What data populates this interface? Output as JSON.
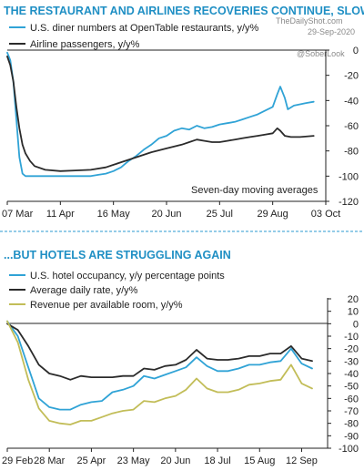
{
  "colors": {
    "title": "#1f8fc4",
    "blue": "#30a3d6",
    "dark": "#2b2b2b",
    "olive": "#c2bd58",
    "divider": "#2b9ad0",
    "axis": "#222222"
  },
  "watermark": {
    "site": "TheDailyShot.com",
    "date": "29-Sep-2020",
    "handle": "@SoberLook"
  },
  "chart_data": [
    {
      "type": "line",
      "title": "THE RESTAURANT AND AIRLINES RECOVERIES CONTINUE, SLOWLY",
      "note": "Seven-day moving averages",
      "y_axis_position": "right",
      "ylim": [
        -120,
        0
      ],
      "yticks": [
        0,
        -20,
        -40,
        -60,
        -80,
        -100,
        -120
      ],
      "ytick_labels": [
        "0",
        "-20",
        "-40",
        "-60",
        "-80",
        "-100",
        "-120"
      ],
      "x_range": [
        "2020-03-07",
        "2020-10-03"
      ],
      "xtick_dates": [
        "2020-03-07",
        "2020-04-11",
        "2020-05-16",
        "2020-06-20",
        "2020-07-25",
        "2020-08-29",
        "2020-10-03"
      ],
      "xtick_labels": [
        "07 Mar",
        "11 Apr",
        "16 May",
        "20 Jun",
        "25 Jul",
        "29 Aug",
        "03 Oct"
      ],
      "legend_position": "top-left",
      "grid": false,
      "series": [
        {
          "name": "U.S. diner numbers at OpenTable restaurants, y/y%",
          "color": "#30a3d6",
          "x": [
            "2020-03-07",
            "2020-03-09",
            "2020-03-11",
            "2020-03-13",
            "2020-03-15",
            "2020-03-17",
            "2020-03-19",
            "2020-03-21",
            "2020-03-25",
            "2020-04-01",
            "2020-04-11",
            "2020-04-21",
            "2020-05-01",
            "2020-05-06",
            "2020-05-11",
            "2020-05-16",
            "2020-05-21",
            "2020-05-26",
            "2020-05-31",
            "2020-06-05",
            "2020-06-10",
            "2020-06-15",
            "2020-06-20",
            "2020-06-25",
            "2020-06-30",
            "2020-07-05",
            "2020-07-10",
            "2020-07-15",
            "2020-07-20",
            "2020-07-25",
            "2020-07-30",
            "2020-08-04",
            "2020-08-09",
            "2020-08-14",
            "2020-08-19",
            "2020-08-24",
            "2020-08-29",
            "2020-09-01",
            "2020-09-03",
            "2020-09-06",
            "2020-09-08",
            "2020-09-12",
            "2020-09-16",
            "2020-09-20",
            "2020-09-25"
          ],
          "y": [
            -2,
            -8,
            -25,
            -55,
            -85,
            -98,
            -100,
            -100,
            -100,
            -100,
            -100,
            -100,
            -100,
            -99,
            -98,
            -96,
            -93,
            -88,
            -84,
            -79,
            -75,
            -70,
            -68,
            -64,
            -62,
            -63,
            -60,
            -62,
            -61,
            -59,
            -58,
            -57,
            -55,
            -53,
            -51,
            -48,
            -45,
            -35,
            -29,
            -38,
            -47,
            -44,
            -43,
            -42,
            -41
          ]
        },
        {
          "name": "Airline passengers, y/y%",
          "color": "#2b2b2b",
          "x": [
            "2020-03-07",
            "2020-03-09",
            "2020-03-11",
            "2020-03-13",
            "2020-03-15",
            "2020-03-17",
            "2020-03-19",
            "2020-03-22",
            "2020-03-25",
            "2020-04-01",
            "2020-04-11",
            "2020-04-21",
            "2020-05-01",
            "2020-05-11",
            "2020-05-16",
            "2020-05-21",
            "2020-05-31",
            "2020-06-10",
            "2020-06-20",
            "2020-06-30",
            "2020-07-05",
            "2020-07-10",
            "2020-07-15",
            "2020-07-20",
            "2020-07-25",
            "2020-07-30",
            "2020-08-04",
            "2020-08-09",
            "2020-08-14",
            "2020-08-19",
            "2020-08-24",
            "2020-08-29",
            "2020-09-01",
            "2020-09-03",
            "2020-09-06",
            "2020-09-10",
            "2020-09-16",
            "2020-09-25"
          ],
          "y": [
            -5,
            -12,
            -25,
            -45,
            -62,
            -75,
            -82,
            -88,
            -92,
            -95,
            -96,
            -95.5,
            -95,
            -93,
            -91,
            -89,
            -85,
            -81,
            -78,
            -75,
            -73,
            -71,
            -72,
            -73,
            -73,
            -72,
            -71,
            -70,
            -69,
            -68,
            -67,
            -66,
            -62,
            -64,
            -68,
            -69,
            -69,
            -68
          ]
        }
      ]
    },
    {
      "type": "line",
      "title": "...BUT HOTELS ARE STRUGGLING AGAIN",
      "y_axis_position": "right",
      "ylim": [
        -100,
        20
      ],
      "yticks": [
        20,
        10,
        0,
        -10,
        -20,
        -30,
        -40,
        -50,
        -60,
        -70,
        -80,
        -90,
        -100
      ],
      "ytick_labels": [
        "20",
        "10",
        "0",
        "-10",
        "-20",
        "-30",
        "-40",
        "-50",
        "-60",
        "-70",
        "-80",
        "-90",
        "-100"
      ],
      "x_range": [
        "2020-02-29",
        "2020-09-22"
      ],
      "xtick_dates": [
        "2020-02-29",
        "2020-03-28",
        "2020-04-25",
        "2020-05-23",
        "2020-06-20",
        "2020-07-18",
        "2020-08-15",
        "2020-09-12"
      ],
      "xtick_labels": [
        "29 Feb",
        "28 Mar",
        "25 Apr",
        "23 May",
        "20 Jun",
        "18 Jul",
        "15 Aug",
        "12 Sep"
      ],
      "legend_position": "top-left",
      "grid": false,
      "series": [
        {
          "name": "U.S. hotel occupancy, y/y percentage points",
          "color": "#30a3d6",
          "x": [
            "2020-02-29",
            "2020-03-07",
            "2020-03-14",
            "2020-03-21",
            "2020-03-28",
            "2020-04-04",
            "2020-04-11",
            "2020-04-18",
            "2020-04-25",
            "2020-05-02",
            "2020-05-09",
            "2020-05-16",
            "2020-05-23",
            "2020-05-30",
            "2020-06-06",
            "2020-06-13",
            "2020-06-20",
            "2020-06-27",
            "2020-07-04",
            "2020-07-11",
            "2020-07-18",
            "2020-07-25",
            "2020-08-01",
            "2020-08-08",
            "2020-08-15",
            "2020-08-22",
            "2020-08-29",
            "2020-09-05",
            "2020-09-12",
            "2020-09-19"
          ],
          "y": [
            2,
            -10,
            -35,
            -60,
            -67,
            -69,
            -69,
            -65,
            -63,
            -62,
            -55,
            -53,
            -50,
            -42,
            -44,
            -41,
            -38,
            -35,
            -27,
            -34,
            -38,
            -38,
            -36,
            -33,
            -33,
            -31,
            -30,
            -20,
            -32,
            -36
          ]
        },
        {
          "name": "Average daily rate, y/y%",
          "color": "#2b2b2b",
          "x": [
            "2020-02-29",
            "2020-03-07",
            "2020-03-14",
            "2020-03-21",
            "2020-03-28",
            "2020-04-04",
            "2020-04-11",
            "2020-04-18",
            "2020-04-25",
            "2020-05-02",
            "2020-05-09",
            "2020-05-16",
            "2020-05-23",
            "2020-05-30",
            "2020-06-06",
            "2020-06-13",
            "2020-06-20",
            "2020-06-27",
            "2020-07-04",
            "2020-07-11",
            "2020-07-18",
            "2020-07-25",
            "2020-08-01",
            "2020-08-08",
            "2020-08-15",
            "2020-08-22",
            "2020-08-29",
            "2020-09-05",
            "2020-09-12",
            "2020-09-19"
          ],
          "y": [
            0,
            -5,
            -18,
            -33,
            -40,
            -42,
            -45,
            -42,
            -43,
            -43,
            -43,
            -42,
            -42,
            -36,
            -37,
            -34,
            -33,
            -29,
            -21,
            -28,
            -29,
            -29,
            -28,
            -26,
            -26,
            -24,
            -24,
            -18,
            -28,
            -30
          ]
        },
        {
          "name": "Revenue per available room, y/y%",
          "color": "#c2bd58",
          "x": [
            "2020-02-29",
            "2020-03-07",
            "2020-03-14",
            "2020-03-21",
            "2020-03-28",
            "2020-04-04",
            "2020-04-11",
            "2020-04-18",
            "2020-04-25",
            "2020-05-02",
            "2020-05-09",
            "2020-05-16",
            "2020-05-23",
            "2020-05-30",
            "2020-06-06",
            "2020-06-13",
            "2020-06-20",
            "2020-06-27",
            "2020-07-04",
            "2020-07-11",
            "2020-07-18",
            "2020-07-25",
            "2020-08-01",
            "2020-08-08",
            "2020-08-15",
            "2020-08-22",
            "2020-08-29",
            "2020-09-05",
            "2020-09-12",
            "2020-09-19"
          ],
          "y": [
            2,
            -15,
            -45,
            -68,
            -78,
            -80,
            -81,
            -78,
            -78,
            -75,
            -72,
            -70,
            -69,
            -62,
            -63,
            -60,
            -58,
            -53,
            -44,
            -52,
            -55,
            -55,
            -53,
            -49,
            -48,
            -46,
            -45,
            -33,
            -48,
            -52
          ]
        }
      ]
    }
  ]
}
